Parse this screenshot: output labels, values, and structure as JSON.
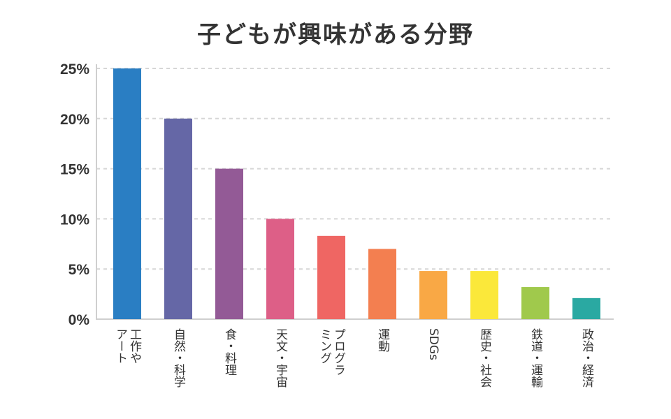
{
  "chart_data": {
    "type": "bar",
    "title": "子どもが興味がある分野",
    "xlabel": "",
    "ylabel": "",
    "ylim": [
      0,
      25
    ],
    "y_ticks": [
      0,
      5,
      10,
      15,
      20,
      25
    ],
    "y_tick_labels": [
      "0%",
      "5%",
      "10%",
      "15%",
      "20%",
      "25%"
    ],
    "grid": true,
    "categories": [
      [
        "工作や",
        "アート"
      ],
      [
        "自然・科学"
      ],
      [
        "食・料理"
      ],
      [
        "天文・宇宙"
      ],
      [
        "プログラ",
        "ミング"
      ],
      [
        "運動"
      ],
      [
        "SDGs"
      ],
      [
        "歴史・社会"
      ],
      [
        "鉄道・運輸"
      ],
      [
        "政治・経済"
      ]
    ],
    "values": [
      25,
      20,
      15,
      10,
      8.3,
      7,
      4.8,
      4.8,
      3.2,
      2.1
    ],
    "colors": [
      "#2a7ec3",
      "#6567a6",
      "#935a96",
      "#dd5f87",
      "#ef6663",
      "#f37f50",
      "#f9a845",
      "#fbe83a",
      "#a0c94c",
      "#2aa9a2"
    ]
  }
}
